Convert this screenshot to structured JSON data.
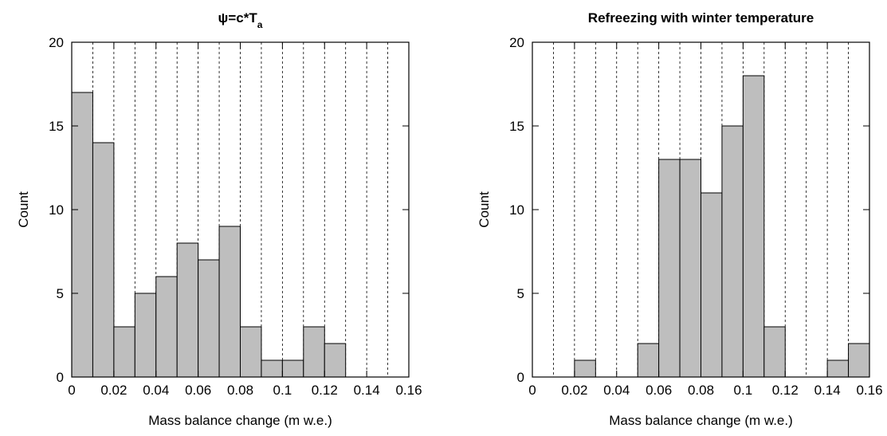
{
  "chart_data": [
    {
      "type": "histogram",
      "title": "ψ=c*T",
      "title_subscript": "a",
      "xlabel": "Mass balance change (m w.e.)",
      "ylabel": "Count",
      "bins": [
        0,
        0.01,
        0.02,
        0.03,
        0.04,
        0.05,
        0.06,
        0.07,
        0.08,
        0.09,
        0.1,
        0.11,
        0.12,
        0.13,
        0.14,
        0.15,
        0.16
      ],
      "counts": [
        17,
        14,
        3,
        5,
        6,
        8,
        7,
        9,
        3,
        1,
        1,
        3,
        2,
        0,
        0,
        0
      ],
      "color": "#bebebe",
      "xlim": [
        0,
        0.16
      ],
      "ylim": [
        0,
        20
      ],
      "xticks": [
        0,
        0.02,
        0.04,
        0.06,
        0.08,
        0.1,
        0.12,
        0.14,
        0.16
      ],
      "yticks": [
        0,
        5,
        10,
        15,
        20
      ],
      "grid": true
    },
    {
      "type": "histogram",
      "title": "Refreezing with winter temperature",
      "xlabel": "Mass balance change (m w.e.)",
      "ylabel": "Count",
      "bins": [
        0,
        0.01,
        0.02,
        0.03,
        0.04,
        0.05,
        0.06,
        0.07,
        0.08,
        0.09,
        0.1,
        0.11,
        0.12,
        0.13,
        0.14,
        0.15,
        0.16
      ],
      "counts": [
        0,
        0,
        1,
        0,
        0,
        2,
        13,
        13,
        11,
        15,
        18,
        3,
        0,
        0,
        1,
        2
      ],
      "color": "#bebebe",
      "xlim": [
        0,
        0.16
      ],
      "ylim": [
        0,
        20
      ],
      "xticks": [
        0,
        0.02,
        0.04,
        0.06,
        0.08,
        0.1,
        0.12,
        0.14,
        0.16
      ],
      "yticks": [
        0,
        5,
        10,
        15,
        20
      ],
      "grid": true
    }
  ]
}
